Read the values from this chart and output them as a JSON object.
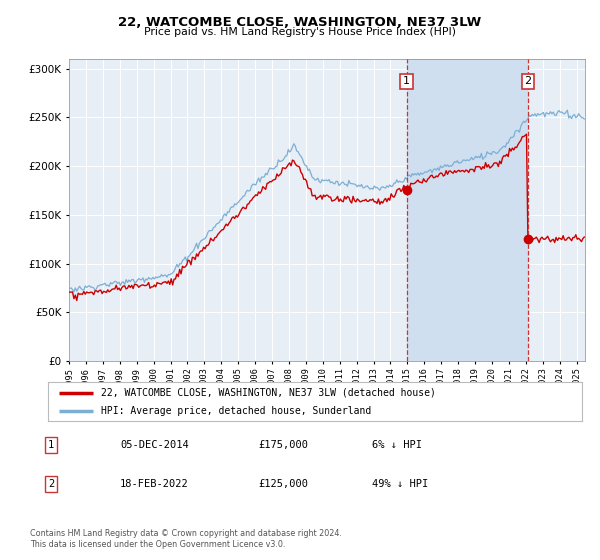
{
  "title": "22, WATCOMBE CLOSE, WASHINGTON, NE37 3LW",
  "subtitle": "Price paid vs. HM Land Registry's House Price Index (HPI)",
  "bg_color": "#ffffff",
  "plot_bg_color": "#e8eef5",
  "shade_color": "#d0dff0",
  "grid_color": "#ffffff",
  "hpi_color": "#7bafd4",
  "price_color": "#cc0000",
  "marker1_price": 175000,
  "marker2_price": 125000,
  "marker1_date_str": "05-DEC-2014",
  "marker2_date_str": "18-FEB-2022",
  "marker1_pct": "6% ↓ HPI",
  "marker2_pct": "49% ↓ HPI",
  "legend_line1": "22, WATCOMBE CLOSE, WASHINGTON, NE37 3LW (detached house)",
  "legend_line2": "HPI: Average price, detached house, Sunderland",
  "footnote": "Contains HM Land Registry data © Crown copyright and database right 2024.\nThis data is licensed under the Open Government Licence v3.0.",
  "ylim": [
    0,
    310000
  ],
  "xstart": 1995.0,
  "xend": 2025.5
}
